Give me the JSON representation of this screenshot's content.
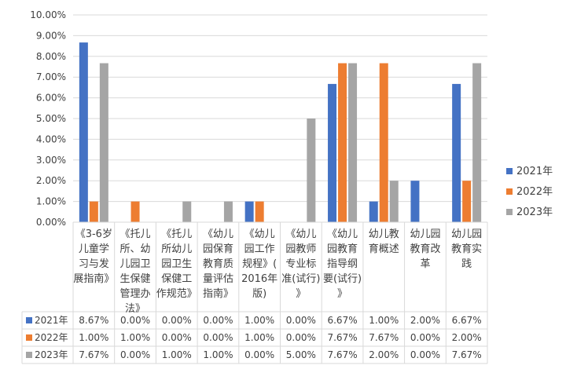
{
  "chart_data": {
    "type": "bar",
    "title": "",
    "xlabel": "",
    "ylabel": "",
    "ylim": [
      0,
      10
    ],
    "y_ticks": [
      "0.00%",
      "1.00%",
      "2.00%",
      "3.00%",
      "4.00%",
      "5.00%",
      "6.00%",
      "7.00%",
      "8.00%",
      "9.00%",
      "10.00%"
    ],
    "grid": true,
    "legend_position": "right",
    "data_table": true,
    "categories": [
      [
        "《3-6岁",
        "儿童学",
        "习与发",
        "展指南》"
      ],
      [
        "《托儿",
        "所、幼",
        "儿园卫",
        "生保健",
        "管理办",
        "法》"
      ],
      [
        "《托儿",
        "所幼儿",
        "园卫生",
        "保健工",
        "作规范》"
      ],
      [
        "《幼儿",
        "园保育",
        "教育质",
        "量评估",
        "指南》"
      ],
      [
        "《幼儿",
        "园工作",
        "规程》(",
        "2016年",
        "版)"
      ],
      [
        "《幼儿",
        "园教师",
        "专业标",
        "准(试行)",
        "》"
      ],
      [
        "《幼儿",
        "园教育",
        "指导纲",
        "要(试行)",
        "》"
      ],
      [
        "幼儿教",
        "育概述"
      ],
      [
        "幼儿园",
        "教育改",
        "革"
      ],
      [
        "幼儿园",
        "教育实",
        "践"
      ]
    ],
    "series": [
      {
        "name": "2021年",
        "color": "#4472C4",
        "values": [
          8.67,
          0.0,
          0.0,
          0.0,
          1.0,
          0.0,
          6.67,
          1.0,
          2.0,
          6.67
        ],
        "labels": [
          "8.67%",
          "0.00%",
          "0.00%",
          "0.00%",
          "1.00%",
          "0.00%",
          "6.67%",
          "1.00%",
          "2.00%",
          "6.67%"
        ]
      },
      {
        "name": "2022年",
        "color": "#ED7D31",
        "values": [
          1.0,
          1.0,
          0.0,
          0.0,
          1.0,
          0.0,
          7.67,
          7.67,
          0.0,
          2.0
        ],
        "labels": [
          "1.00%",
          "1.00%",
          "0.00%",
          "0.00%",
          "1.00%",
          "0.00%",
          "7.67%",
          "7.67%",
          "0.00%",
          "2.00%"
        ]
      },
      {
        "name": "2023年",
        "color": "#A5A5A5",
        "values": [
          7.67,
          0.0,
          1.0,
          1.0,
          0.0,
          5.0,
          7.67,
          2.0,
          0.0,
          7.67
        ],
        "labels": [
          "7.67%",
          "0.00%",
          "1.00%",
          "1.00%",
          "0.00%",
          "5.00%",
          "7.67%",
          "2.00%",
          "0.00%",
          "7.67%"
        ]
      }
    ]
  }
}
